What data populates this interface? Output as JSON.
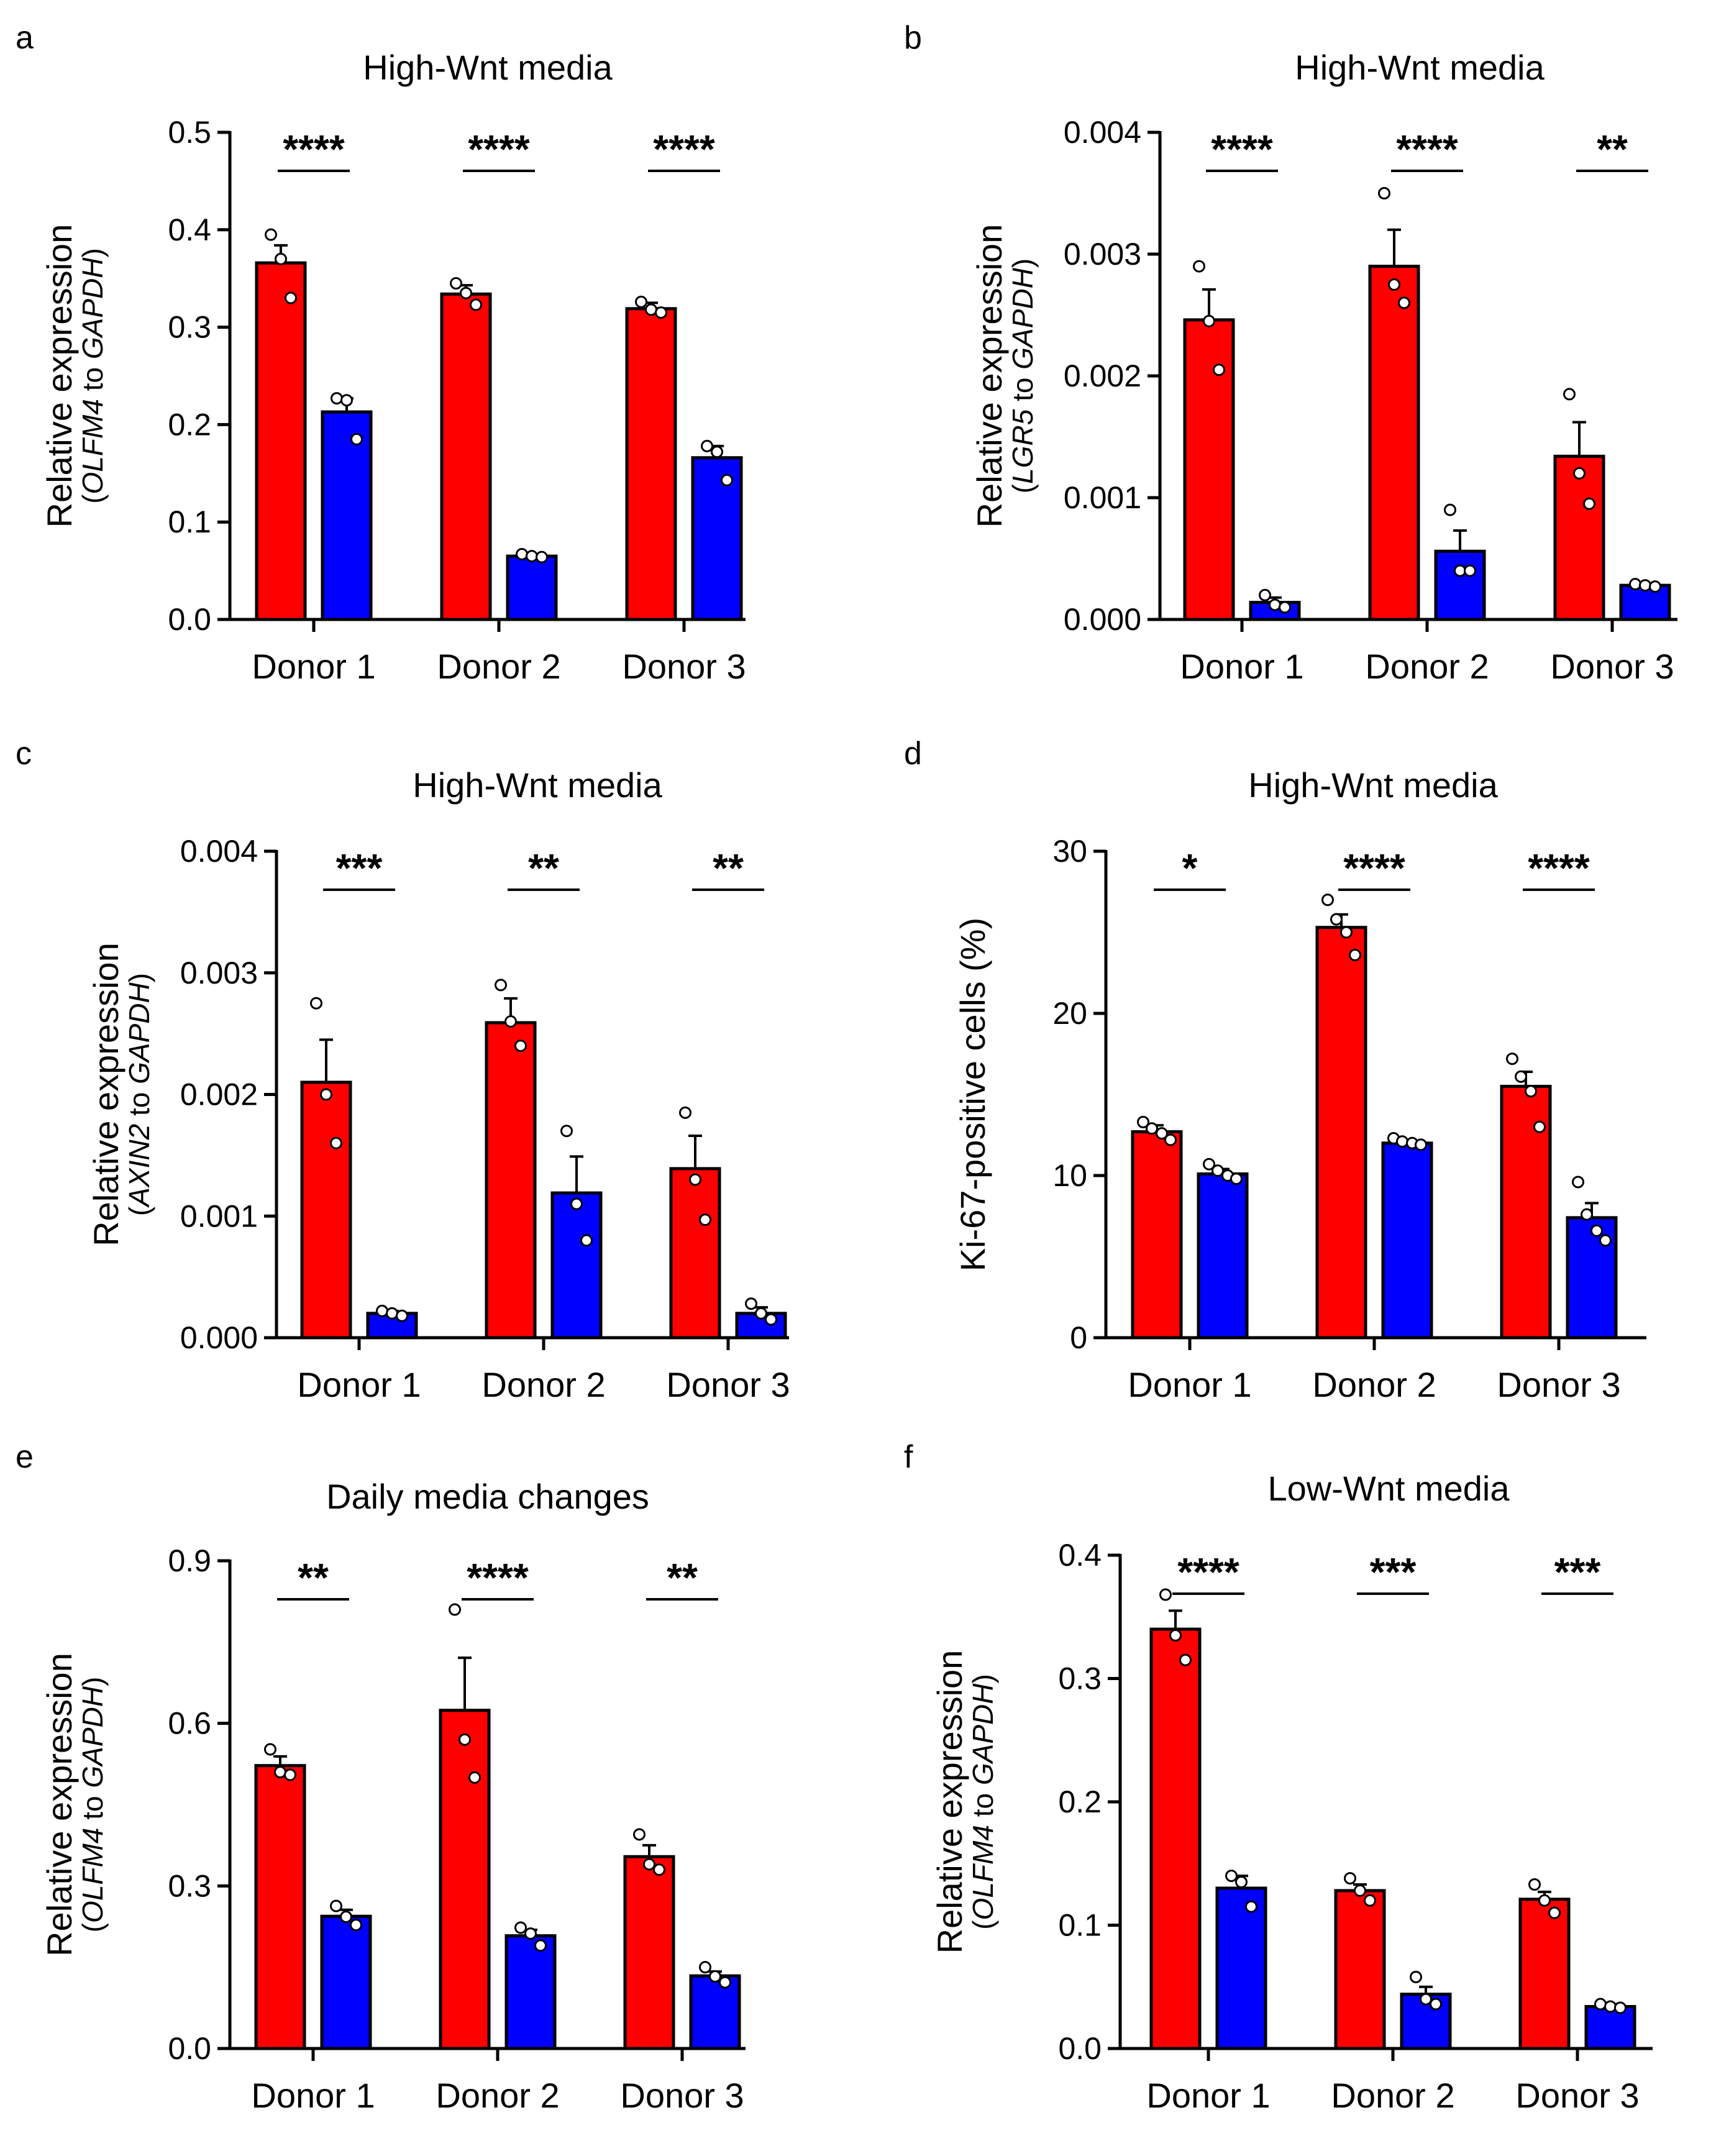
{
  "figure": {
    "colors": {
      "red": "#ff0000",
      "blue": "#0000ff",
      "axis": "#000000",
      "point_fill": "#ffffff"
    }
  },
  "chart_data": [
    {
      "panel": "a",
      "type": "bar",
      "title": "High-Wnt media",
      "ylabel": "Relative expression",
      "ylabel_gene": "OLFM4",
      "ylabel_connector": " to ",
      "ylabel_ref": "GAPDH",
      "ylim": [
        0,
        0.5
      ],
      "yticks": [
        0,
        0.1,
        0.2,
        0.3,
        0.4,
        0.5
      ],
      "ytick_labels": [
        "0.0",
        "0.1",
        "0.2",
        "0.3",
        "0.4",
        "0.5"
      ],
      "categories": [
        "Donor 1",
        "Donor 2",
        "Donor 3"
      ],
      "series": [
        {
          "name": "red",
          "color": "#ff0000",
          "values": [
            0.366,
            0.334,
            0.319
          ],
          "errors": [
            0.018,
            0.009,
            0.006
          ],
          "points": [
            [
              0.395,
              0.37,
              0.33
            ],
            [
              0.345,
              0.335,
              0.323
            ],
            [
              0.326,
              0.318,
              0.315
            ]
          ]
        },
        {
          "name": "blue",
          "color": "#0000ff",
          "values": [
            0.213,
            0.065,
            0.166
          ],
          "errors": [
            0.014,
            0.002,
            0.012
          ],
          "points": [
            [
              0.227,
              0.225,
              0.185
            ],
            [
              0.067,
              0.065,
              0.064
            ],
            [
              0.178,
              0.172,
              0.143
            ]
          ]
        }
      ],
      "significance": [
        "****",
        "****",
        "****"
      ]
    },
    {
      "panel": "b",
      "type": "bar",
      "title": "High-Wnt media",
      "ylabel": "Relative expression",
      "ylabel_gene": "LGR5",
      "ylabel_connector": " to ",
      "ylabel_ref": "GAPDH",
      "ylim": [
        0,
        0.004
      ],
      "yticks": [
        0,
        0.001,
        0.002,
        0.003,
        0.004
      ],
      "ytick_labels": [
        "0.000",
        "0.001",
        "0.002",
        "0.003",
        "0.004"
      ],
      "categories": [
        "Donor 1",
        "Donor 2",
        "Donor 3"
      ],
      "series": [
        {
          "name": "red",
          "color": "#ff0000",
          "values": [
            0.00246,
            0.0029,
            0.00134
          ],
          "errors": [
            0.00025,
            0.0003,
            0.00028
          ],
          "points": [
            [
              0.0029,
              0.00245,
              0.00205
            ],
            [
              0.0035,
              0.00275,
              0.0026
            ],
            [
              0.00185,
              0.0012,
              0.00095
            ]
          ]
        },
        {
          "name": "blue",
          "color": "#0000ff",
          "values": [
            0.00014,
            0.00056,
            0.00028
          ],
          "errors": [
            4e-05,
            0.00017,
            1e-05
          ],
          "points": [
            [
              0.0002,
              0.00012,
              0.0001
            ],
            [
              0.0009,
              0.0004,
              0.0004
            ],
            [
              0.00029,
              0.00028,
              0.00027
            ]
          ]
        }
      ],
      "significance": [
        "****",
        "****",
        "**"
      ]
    },
    {
      "panel": "c",
      "type": "bar",
      "title": "High-Wnt media",
      "ylabel": "Relative expression",
      "ylabel_gene": "AXIN2",
      "ylabel_connector": " to ",
      "ylabel_ref": "GAPDH",
      "ylim": [
        0,
        0.004
      ],
      "yticks": [
        0,
        0.001,
        0.002,
        0.003,
        0.004
      ],
      "ytick_labels": [
        "0.000",
        "0.001",
        "0.002",
        "0.003",
        "0.004"
      ],
      "categories": [
        "Donor 1",
        "Donor 2",
        "Donor 3"
      ],
      "series": [
        {
          "name": "red",
          "color": "#ff0000",
          "values": [
            0.0021,
            0.00259,
            0.00139
          ],
          "errors": [
            0.00035,
            0.0002,
            0.00027
          ],
          "points": [
            [
              0.00275,
              0.002,
              0.0016
            ],
            [
              0.0029,
              0.0026,
              0.0024
            ],
            [
              0.00185,
              0.0013,
              0.00097
            ]
          ]
        },
        {
          "name": "blue",
          "color": "#0000ff",
          "values": [
            0.0002,
            0.00119,
            0.0002
          ],
          "errors": [
            2e-05,
            0.0003,
            5e-05
          ],
          "points": [
            [
              0.00022,
              0.0002,
              0.00018
            ],
            [
              0.0017,
              0.0011,
              0.0008
            ],
            [
              0.00028,
              0.0002,
              0.00015
            ]
          ]
        }
      ],
      "significance": [
        "***",
        "**",
        "**"
      ]
    },
    {
      "panel": "d",
      "type": "bar",
      "title": "High-Wnt media",
      "ylabel": "Ki-67-positive cells (%)",
      "ylim": [
        0,
        30
      ],
      "yticks": [
        0,
        10,
        20,
        30
      ],
      "ytick_labels": [
        "0",
        "10",
        "20",
        "30"
      ],
      "categories": [
        "Donor 1",
        "Donor 2",
        "Donor 3"
      ],
      "series": [
        {
          "name": "red",
          "color": "#ff0000",
          "values": [
            12.7,
            25.3,
            15.5
          ],
          "errors": [
            0.4,
            0.8,
            0.9
          ],
          "points": [
            [
              13.3,
              12.9,
              12.6,
              12.2
            ],
            [
              27.0,
              25.8,
              25.0,
              23.6
            ],
            [
              17.2,
              16.1,
              15.2,
              13.0
            ]
          ]
        },
        {
          "name": "blue",
          "color": "#0000ff",
          "values": [
            10.1,
            12.0,
            7.4
          ],
          "errors": [
            0.3,
            0.2,
            0.9
          ],
          "points": [
            [
              10.7,
              10.3,
              10.0,
              9.8
            ],
            [
              12.3,
              12.1,
              12.0,
              11.9
            ],
            [
              9.6,
              7.6,
              6.6,
              6.0
            ]
          ]
        }
      ],
      "significance": [
        "*",
        "****",
        "****"
      ]
    },
    {
      "panel": "e",
      "type": "bar",
      "title": "Daily media changes",
      "ylabel": "Relative expression",
      "ylabel_gene": "OLFM4",
      "ylabel_connector": " to ",
      "ylabel_ref": "GAPDH",
      "ylim": [
        0,
        0.9
      ],
      "yticks": [
        0,
        0.3,
        0.6,
        0.9
      ],
      "ytick_labels": [
        "0.0",
        "0.3",
        "0.6",
        "0.9"
      ],
      "categories": [
        "Donor 1",
        "Donor 2",
        "Donor 3"
      ],
      "series": [
        {
          "name": "red",
          "color": "#ff0000",
          "values": [
            0.522,
            0.624,
            0.354
          ],
          "errors": [
            0.017,
            0.097,
            0.021
          ],
          "points": [
            [
              0.552,
              0.51,
              0.505
            ],
            [
              0.81,
              0.57,
              0.5
            ],
            [
              0.395,
              0.34,
              0.33
            ]
          ]
        },
        {
          "name": "blue",
          "color": "#0000ff",
          "values": [
            0.244,
            0.208,
            0.134
          ],
          "errors": [
            0.012,
            0.011,
            0.008
          ],
          "points": [
            [
              0.263,
              0.243,
              0.228
            ],
            [
              0.223,
              0.212,
              0.19
            ],
            [
              0.15,
              0.133,
              0.122
            ]
          ]
        }
      ],
      "significance": [
        "**",
        "****",
        "**"
      ]
    },
    {
      "panel": "f",
      "type": "bar",
      "title": "Low-Wnt media",
      "ylabel": "Relative expression",
      "ylabel_gene": "OLFM4",
      "ylabel_connector": " to ",
      "ylabel_ref": "GAPDH",
      "ylim": [
        0,
        0.4
      ],
      "yticks": [
        0,
        0.1,
        0.2,
        0.3,
        0.4
      ],
      "ytick_labels": [
        "0.0",
        "0.1",
        "0.2",
        "0.3",
        "0.4"
      ],
      "categories": [
        "Donor 1",
        "Donor 2",
        "Donor 3"
      ],
      "series": [
        {
          "name": "red",
          "color": "#ff0000",
          "values": [
            0.34,
            0.128,
            0.121
          ],
          "errors": [
            0.015,
            0.005,
            0.006
          ],
          "points": [
            [
              0.368,
              0.335,
              0.315
            ],
            [
              0.138,
              0.128,
              0.12
            ],
            [
              0.133,
              0.12,
              0.11
            ]
          ]
        },
        {
          "name": "blue",
          "color": "#0000ff",
          "values": [
            0.13,
            0.044,
            0.034
          ],
          "errors": [
            0.01,
            0.006,
            0.002
          ],
          "points": [
            [
              0.14,
              0.135,
              0.115
            ],
            [
              0.058,
              0.04,
              0.036
            ],
            [
              0.036,
              0.034,
              0.033
            ]
          ]
        }
      ],
      "significance": [
        "****",
        "***",
        "***"
      ]
    }
  ]
}
